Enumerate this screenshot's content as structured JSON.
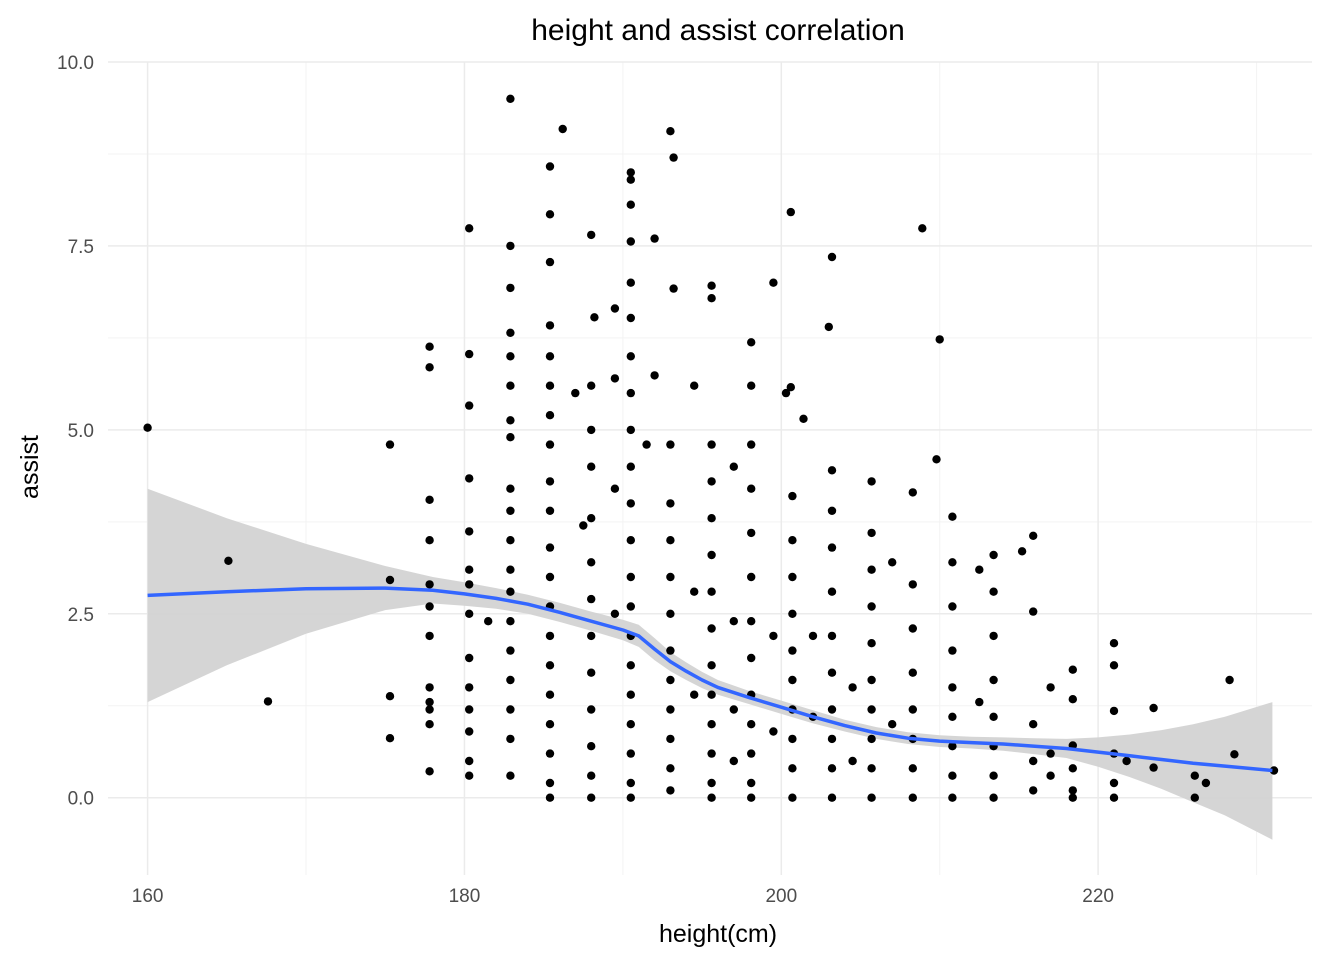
{
  "chart_data": {
    "type": "scatter",
    "title": "height and assist correlation",
    "xlabel": "height(cm)",
    "ylabel": "assist",
    "xlim": [
      157.5,
      233.5
    ],
    "ylim": [
      -1.05,
      10.0
    ],
    "x_ticks": [
      160,
      180,
      200,
      220
    ],
    "x_tick_labels": [
      "160",
      "180",
      "200",
      "220"
    ],
    "y_ticks": [
      0,
      2.5,
      5,
      7.5,
      10
    ],
    "y_tick_labels": [
      "0.0",
      "2.5",
      "5.0",
      "7.5",
      "10.0"
    ],
    "grid": true,
    "legend": "none",
    "colors": {
      "points": "#000000",
      "smooth_line": "#3366ff",
      "confidence_band": "#d3d3d3",
      "grid_major": "#ebebeb",
      "grid_minor": "#f3f3f3",
      "text": "#000000",
      "tick_text": "#4d4d4d"
    },
    "points": [
      [
        160,
        5.03
      ],
      [
        165.1,
        3.22
      ],
      [
        167.6,
        1.31
      ],
      [
        175.3,
        4.8
      ],
      [
        175.3,
        2.96
      ],
      [
        175.3,
        1.38
      ],
      [
        175.3,
        0.81
      ],
      [
        177.8,
        6.13
      ],
      [
        177.8,
        5.85
      ],
      [
        177.8,
        4.05
      ],
      [
        177.8,
        3.5
      ],
      [
        177.8,
        2.9
      ],
      [
        177.8,
        2.6
      ],
      [
        177.8,
        2.2
      ],
      [
        177.8,
        1.5
      ],
      [
        177.8,
        1.3
      ],
      [
        177.8,
        1.2
      ],
      [
        177.8,
        1.0
      ],
      [
        177.8,
        0.36
      ],
      [
        180.3,
        7.74
      ],
      [
        180.3,
        6.03
      ],
      [
        180.3,
        5.33
      ],
      [
        180.3,
        4.34
      ],
      [
        180.3,
        3.62
      ],
      [
        180.3,
        3.1
      ],
      [
        180.3,
        2.9
      ],
      [
        180.3,
        2.5
      ],
      [
        180.3,
        1.9
      ],
      [
        180.3,
        1.5
      ],
      [
        180.3,
        1.2
      ],
      [
        180.3,
        0.9
      ],
      [
        180.3,
        0.5
      ],
      [
        180.3,
        0.3
      ],
      [
        181.5,
        2.4
      ],
      [
        182.9,
        9.5
      ],
      [
        182.9,
        7.5
      ],
      [
        182.9,
        6.93
      ],
      [
        182.9,
        6.32
      ],
      [
        182.9,
        6.0
      ],
      [
        182.9,
        5.6
      ],
      [
        182.9,
        5.13
      ],
      [
        182.9,
        4.9
      ],
      [
        182.9,
        4.2
      ],
      [
        182.9,
        3.9
      ],
      [
        182.9,
        3.5
      ],
      [
        182.9,
        3.1
      ],
      [
        182.9,
        2.8
      ],
      [
        182.9,
        2.4
      ],
      [
        182.9,
        2.0
      ],
      [
        182.9,
        1.6
      ],
      [
        182.9,
        1.2
      ],
      [
        182.9,
        0.8
      ],
      [
        182.9,
        0.3
      ],
      [
        185.4,
        8.58
      ],
      [
        185.4,
        7.93
      ],
      [
        185.4,
        7.28
      ],
      [
        185.4,
        6.42
      ],
      [
        185.4,
        6.0
      ],
      [
        185.4,
        5.6
      ],
      [
        185.4,
        5.2
      ],
      [
        185.4,
        4.8
      ],
      [
        185.4,
        4.3
      ],
      [
        185.4,
        3.9
      ],
      [
        185.4,
        3.4
      ],
      [
        185.4,
        3.0
      ],
      [
        185.4,
        2.6
      ],
      [
        185.4,
        2.2
      ],
      [
        185.4,
        1.8
      ],
      [
        185.4,
        1.4
      ],
      [
        185.4,
        1.0
      ],
      [
        185.4,
        0.6
      ],
      [
        185.4,
        0.2
      ],
      [
        185.4,
        0.0
      ],
      [
        186.2,
        9.09
      ],
      [
        187.0,
        5.5
      ],
      [
        187.5,
        3.7
      ],
      [
        188.0,
        7.65
      ],
      [
        188.2,
        6.53
      ],
      [
        188.0,
        5.6
      ],
      [
        188.0,
        5.0
      ],
      [
        188.0,
        4.5
      ],
      [
        188.0,
        3.8
      ],
      [
        188.0,
        3.2
      ],
      [
        188.0,
        2.7
      ],
      [
        188.0,
        2.2
      ],
      [
        188.0,
        1.7
      ],
      [
        188.0,
        1.2
      ],
      [
        188.0,
        0.7
      ],
      [
        188.0,
        0.3
      ],
      [
        188.0,
        0.0
      ],
      [
        189.5,
        6.65
      ],
      [
        189.5,
        5.7
      ],
      [
        189.5,
        4.2
      ],
      [
        189.5,
        2.5
      ],
      [
        190.5,
        8.5
      ],
      [
        190.5,
        8.4
      ],
      [
        190.5,
        8.06
      ],
      [
        190.5,
        7.56
      ],
      [
        190.5,
        7.0
      ],
      [
        190.5,
        6.52
      ],
      [
        190.5,
        6.0
      ],
      [
        190.5,
        5.5
      ],
      [
        190.5,
        5.0
      ],
      [
        190.5,
        4.5
      ],
      [
        190.5,
        4.0
      ],
      [
        190.5,
        3.5
      ],
      [
        190.5,
        3.0
      ],
      [
        190.5,
        2.6
      ],
      [
        190.5,
        2.2
      ],
      [
        190.5,
        1.8
      ],
      [
        190.5,
        1.4
      ],
      [
        190.5,
        1.0
      ],
      [
        190.5,
        0.6
      ],
      [
        190.5,
        0.2
      ],
      [
        190.5,
        0.0
      ],
      [
        191.5,
        4.8
      ],
      [
        192.0,
        5.74
      ],
      [
        192.0,
        7.6
      ],
      [
        193.0,
        9.06
      ],
      [
        193.2,
        8.7
      ],
      [
        193.2,
        6.92
      ],
      [
        193.0,
        4.8
      ],
      [
        193.0,
        4.0
      ],
      [
        193.0,
        3.5
      ],
      [
        193.0,
        3.0
      ],
      [
        193.0,
        2.5
      ],
      [
        193.0,
        2.0
      ],
      [
        193.0,
        1.6
      ],
      [
        193.0,
        1.2
      ],
      [
        193.0,
        0.8
      ],
      [
        193.0,
        0.4
      ],
      [
        193.0,
        0.1
      ],
      [
        194.5,
        5.6
      ],
      [
        194.5,
        2.8
      ],
      [
        194.5,
        1.4
      ],
      [
        195.6,
        6.96
      ],
      [
        195.6,
        6.79
      ],
      [
        195.6,
        4.8
      ],
      [
        195.6,
        4.3
      ],
      [
        195.6,
        3.8
      ],
      [
        195.6,
        3.3
      ],
      [
        195.6,
        2.8
      ],
      [
        195.6,
        2.3
      ],
      [
        195.6,
        1.8
      ],
      [
        195.6,
        1.4
      ],
      [
        195.6,
        1.0
      ],
      [
        195.6,
        0.6
      ],
      [
        195.6,
        0.2
      ],
      [
        195.6,
        0.0
      ],
      [
        197.0,
        4.5
      ],
      [
        197.0,
        2.4
      ],
      [
        197.0,
        1.2
      ],
      [
        197.0,
        0.5
      ],
      [
        198.1,
        6.19
      ],
      [
        198.1,
        5.6
      ],
      [
        198.1,
        4.8
      ],
      [
        198.1,
        4.2
      ],
      [
        198.1,
        3.6
      ],
      [
        198.1,
        3.0
      ],
      [
        198.1,
        2.4
      ],
      [
        198.1,
        1.9
      ],
      [
        198.1,
        1.4
      ],
      [
        198.1,
        1.0
      ],
      [
        198.1,
        0.6
      ],
      [
        198.1,
        0.2
      ],
      [
        198.1,
        0.0
      ],
      [
        199.5,
        7.0
      ],
      [
        199.5,
        2.2
      ],
      [
        199.5,
        0.9
      ],
      [
        200.3,
        5.5
      ],
      [
        200.6,
        7.96
      ],
      [
        200.6,
        5.58
      ],
      [
        200.7,
        4.1
      ],
      [
        200.7,
        3.5
      ],
      [
        200.7,
        3.0
      ],
      [
        200.7,
        2.5
      ],
      [
        200.7,
        2.0
      ],
      [
        200.7,
        1.6
      ],
      [
        200.7,
        1.2
      ],
      [
        200.7,
        0.8
      ],
      [
        200.7,
        0.4
      ],
      [
        200.7,
        0.0
      ],
      [
        201.4,
        5.15
      ],
      [
        202.0,
        2.2
      ],
      [
        202.0,
        1.1
      ],
      [
        203.2,
        7.35
      ],
      [
        203.0,
        6.4
      ],
      [
        203.2,
        4.45
      ],
      [
        203.2,
        3.9
      ],
      [
        203.2,
        3.4
      ],
      [
        203.2,
        2.8
      ],
      [
        203.2,
        2.2
      ],
      [
        203.2,
        1.7
      ],
      [
        203.2,
        1.2
      ],
      [
        203.2,
        0.8
      ],
      [
        203.2,
        0.4
      ],
      [
        203.2,
        0.0
      ],
      [
        204.5,
        1.5
      ],
      [
        204.5,
        0.5
      ],
      [
        205.7,
        4.3
      ],
      [
        205.7,
        3.6
      ],
      [
        205.7,
        3.1
      ],
      [
        205.7,
        2.6
      ],
      [
        205.7,
        2.1
      ],
      [
        205.7,
        1.6
      ],
      [
        205.7,
        1.2
      ],
      [
        205.7,
        0.8
      ],
      [
        205.7,
        0.4
      ],
      [
        205.7,
        0.0
      ],
      [
        207.0,
        3.2
      ],
      [
        207.0,
        1.0
      ],
      [
        208.3,
        4.15
      ],
      [
        208.3,
        2.9
      ],
      [
        208.3,
        2.3
      ],
      [
        208.3,
        1.7
      ],
      [
        208.3,
        1.2
      ],
      [
        208.3,
        0.8
      ],
      [
        208.3,
        0.4
      ],
      [
        208.3,
        0.0
      ],
      [
        208.9,
        7.74
      ],
      [
        210.0,
        6.23
      ],
      [
        209.8,
        4.6
      ],
      [
        210.8,
        3.82
      ],
      [
        210.8,
        3.2
      ],
      [
        210.8,
        2.6
      ],
      [
        210.8,
        2.0
      ],
      [
        210.8,
        1.5
      ],
      [
        210.8,
        1.1
      ],
      [
        210.8,
        0.7
      ],
      [
        210.8,
        0.3
      ],
      [
        210.8,
        0.0
      ],
      [
        212.5,
        3.1
      ],
      [
        212.5,
        1.3
      ],
      [
        213.4,
        3.3
      ],
      [
        213.4,
        2.8
      ],
      [
        213.4,
        2.2
      ],
      [
        213.4,
        1.6
      ],
      [
        213.4,
        1.1
      ],
      [
        213.4,
        0.7
      ],
      [
        213.4,
        0.3
      ],
      [
        213.4,
        0.0
      ],
      [
        215.2,
        3.35
      ],
      [
        215.9,
        3.56
      ],
      [
        215.9,
        2.53
      ],
      [
        215.9,
        1.0
      ],
      [
        215.9,
        0.5
      ],
      [
        215.9,
        0.1
      ],
      [
        217.0,
        1.5
      ],
      [
        217.0,
        0.6
      ],
      [
        217.0,
        0.3
      ],
      [
        218.4,
        1.74
      ],
      [
        218.4,
        1.34
      ],
      [
        218.4,
        0.71
      ],
      [
        218.4,
        0.4
      ],
      [
        218.4,
        0.1
      ],
      [
        218.4,
        0.0
      ],
      [
        221.0,
        2.1
      ],
      [
        221.0,
        1.8
      ],
      [
        221.0,
        1.18
      ],
      [
        221.0,
        0.6
      ],
      [
        221.0,
        0.2
      ],
      [
        221.0,
        0.0
      ],
      [
        221.8,
        0.5
      ],
      [
        223.5,
        1.22
      ],
      [
        223.5,
        0.41
      ],
      [
        226.1,
        0.3
      ],
      [
        226.1,
        0.0
      ],
      [
        226.8,
        0.2
      ],
      [
        228.3,
        1.6
      ],
      [
        228.6,
        0.59
      ],
      [
        231.1,
        0.37
      ]
    ],
    "smooth_line": [
      [
        160,
        2.75
      ],
      [
        165,
        2.8
      ],
      [
        170,
        2.84
      ],
      [
        175,
        2.85
      ],
      [
        178,
        2.82
      ],
      [
        180,
        2.77
      ],
      [
        182,
        2.71
      ],
      [
        184,
        2.63
      ],
      [
        186,
        2.52
      ],
      [
        188,
        2.4
      ],
      [
        190,
        2.28
      ],
      [
        191,
        2.2
      ],
      [
        192,
        2.02
      ],
      [
        193,
        1.85
      ],
      [
        194,
        1.72
      ],
      [
        195,
        1.6
      ],
      [
        196,
        1.5
      ],
      [
        198,
        1.36
      ],
      [
        200,
        1.23
      ],
      [
        202,
        1.1
      ],
      [
        204,
        0.98
      ],
      [
        206,
        0.88
      ],
      [
        208,
        0.81
      ],
      [
        210,
        0.77
      ],
      [
        212,
        0.75
      ],
      [
        214,
        0.73
      ],
      [
        216,
        0.7
      ],
      [
        218,
        0.67
      ],
      [
        220,
        0.62
      ],
      [
        222,
        0.57
      ],
      [
        224,
        0.52
      ],
      [
        226,
        0.47
      ],
      [
        228,
        0.43
      ],
      [
        231,
        0.37
      ]
    ],
    "band_upper": [
      [
        160,
        4.2
      ],
      [
        165,
        3.8
      ],
      [
        170,
        3.45
      ],
      [
        175,
        3.15
      ],
      [
        178,
        3.0
      ],
      [
        180,
        2.93
      ],
      [
        182,
        2.85
      ],
      [
        184,
        2.76
      ],
      [
        186,
        2.65
      ],
      [
        188,
        2.53
      ],
      [
        190,
        2.42
      ],
      [
        191,
        2.35
      ],
      [
        192,
        2.17
      ],
      [
        193,
        1.98
      ],
      [
        194,
        1.84
      ],
      [
        195,
        1.71
      ],
      [
        196,
        1.6
      ],
      [
        198,
        1.45
      ],
      [
        200,
        1.32
      ],
      [
        202,
        1.19
      ],
      [
        204,
        1.06
      ],
      [
        206,
        0.96
      ],
      [
        208,
        0.89
      ],
      [
        210,
        0.85
      ],
      [
        212,
        0.83
      ],
      [
        214,
        0.82
      ],
      [
        216,
        0.81
      ],
      [
        218,
        0.8
      ],
      [
        220,
        0.82
      ],
      [
        222,
        0.86
      ],
      [
        224,
        0.92
      ],
      [
        226,
        1.0
      ],
      [
        228,
        1.1
      ],
      [
        231,
        1.3
      ]
    ],
    "band_lower": [
      [
        160,
        1.3
      ],
      [
        165,
        1.8
      ],
      [
        170,
        2.23
      ],
      [
        175,
        2.55
      ],
      [
        178,
        2.64
      ],
      [
        180,
        2.61
      ],
      [
        182,
        2.57
      ],
      [
        184,
        2.5
      ],
      [
        186,
        2.39
      ],
      [
        188,
        2.27
      ],
      [
        190,
        2.14
      ],
      [
        191,
        2.05
      ],
      [
        192,
        1.87
      ],
      [
        193,
        1.72
      ],
      [
        194,
        1.6
      ],
      [
        195,
        1.49
      ],
      [
        196,
        1.4
      ],
      [
        198,
        1.27
      ],
      [
        200,
        1.14
      ],
      [
        202,
        1.01
      ],
      [
        204,
        0.9
      ],
      [
        206,
        0.8
      ],
      [
        208,
        0.73
      ],
      [
        210,
        0.69
      ],
      [
        212,
        0.67
      ],
      [
        214,
        0.64
      ],
      [
        216,
        0.59
      ],
      [
        218,
        0.54
      ],
      [
        220,
        0.42
      ],
      [
        222,
        0.28
      ],
      [
        224,
        0.12
      ],
      [
        226,
        -0.06
      ],
      [
        228,
        -0.24
      ],
      [
        231,
        -0.57
      ]
    ]
  }
}
